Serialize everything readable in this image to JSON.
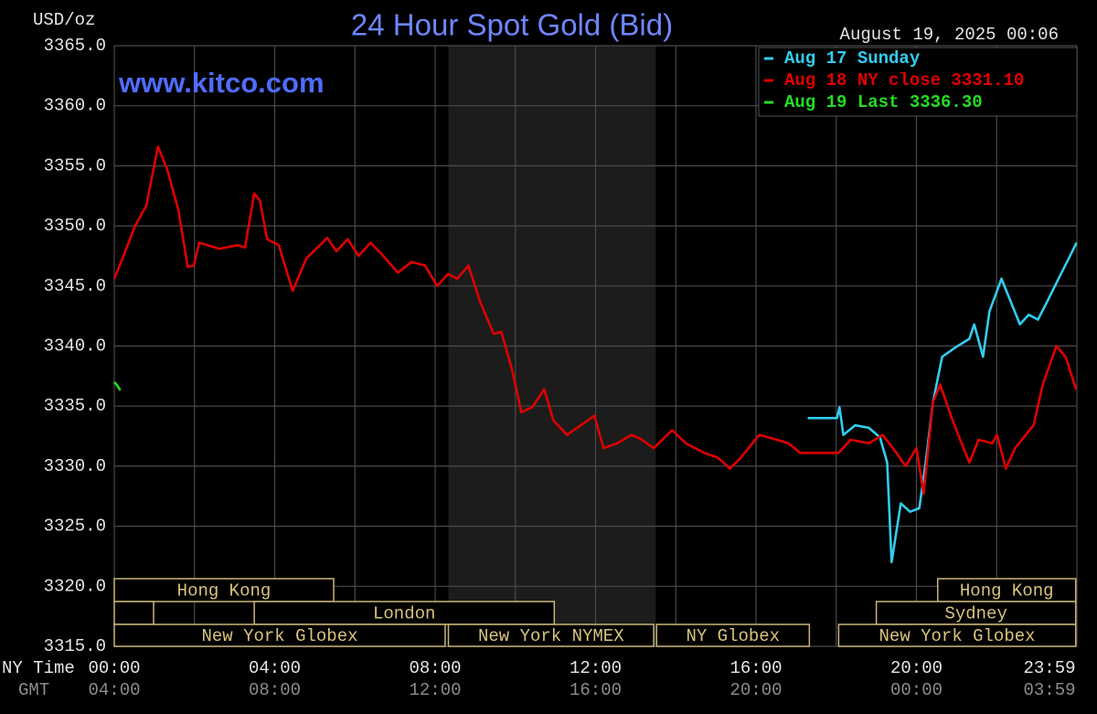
{
  "chart_data": {
    "type": "line",
    "title": "24 Hour Spot Gold (Bid)",
    "watermark": "www.kitco.com",
    "timestamp": "August 19, 2025 00:06",
    "y_label": "USD/oz",
    "x_label": "NY Time",
    "x2_label": "GMT",
    "xlim": [
      0,
      24
    ],
    "ylim": [
      3315,
      3365
    ],
    "xticks": [
      {
        "value": 0,
        "label": "00:00"
      },
      {
        "value": 4,
        "label": "04:00"
      },
      {
        "value": 8,
        "label": "08:00"
      },
      {
        "value": 12,
        "label": "12:00"
      },
      {
        "value": 16,
        "label": "16:00"
      },
      {
        "value": 20,
        "label": "20:00"
      },
      {
        "value": 23.983,
        "label": "23:59"
      }
    ],
    "gmt_labels": [
      "04:00",
      "08:00",
      "12:00",
      "16:00",
      "20:00",
      "00:00",
      "03:59"
    ],
    "xgrid": [
      0,
      2,
      4,
      6,
      8,
      10,
      12,
      14,
      16,
      18,
      20,
      22,
      24
    ],
    "yticks": [
      {
        "value": 3365,
        "label": "3365.0"
      },
      {
        "value": 3360,
        "label": "3360.0"
      },
      {
        "value": 3355,
        "label": "3355.0"
      },
      {
        "value": 3350,
        "label": "3350.0"
      },
      {
        "value": 3345,
        "label": "3345.0"
      },
      {
        "value": 3340,
        "label": "3340.0"
      },
      {
        "value": 3335,
        "label": "3335.0"
      },
      {
        "value": 3330,
        "label": "3330.0"
      },
      {
        "value": 3325,
        "label": "3325.0"
      },
      {
        "value": 3320,
        "label": "3320.0"
      },
      {
        "value": 3315,
        "label": "3315.0"
      }
    ],
    "grid": true,
    "legend": "top-right",
    "shaded_range": [
      8.33,
      13.5
    ],
    "sessions": [
      {
        "name": "Hong Kong",
        "row": 0,
        "start": 0,
        "end": 5.47
      },
      {
        "name": null,
        "row": 1,
        "start": 0,
        "end": 0.98
      },
      {
        "name": "London",
        "row": 1,
        "start": 3.49,
        "end": 10.97
      },
      {
        "name": "New York Globex",
        "row": 2,
        "start": 0,
        "end": 8.25
      },
      {
        "name": "New York NYMEX",
        "row": 2,
        "start": 8.33,
        "end": 13.45
      },
      {
        "name": "NY Globex",
        "row": 2,
        "start": 13.52,
        "end": 17.33
      },
      {
        "name": "Hong Kong",
        "row": 0,
        "start": 20.53,
        "end": 23.97
      },
      {
        "name": "Sydney",
        "row": 1,
        "start": 19.0,
        "end": 23.97
      },
      {
        "name": "New York Globex",
        "row": 2,
        "start": 18.06,
        "end": 23.97
      }
    ],
    "series": [
      {
        "name": "Aug 17 Sunday",
        "color": "#33ccee",
        "x": [
          17.29,
          18.02,
          18.08,
          18.18,
          18.47,
          18.81,
          19.09,
          19.27,
          19.38,
          19.61,
          19.84,
          20.07,
          20.23,
          20.41,
          20.64,
          20.98,
          21.32,
          21.44,
          21.66,
          21.82,
          22.12,
          22.35,
          22.58,
          22.8,
          23.03,
          23.26,
          23.6,
          23.83,
          23.99
        ],
        "values": [
          3334.0,
          3334.0,
          3334.9,
          3332.6,
          3333.4,
          3333.2,
          3332.4,
          3330.3,
          3322.0,
          3326.9,
          3326.2,
          3326.5,
          3330.3,
          3335.3,
          3339.1,
          3339.9,
          3340.6,
          3341.8,
          3339.1,
          3342.9,
          3345.6,
          3343.7,
          3341.8,
          3342.6,
          3342.2,
          3343.7,
          3346.0,
          3347.5,
          3348.6
        ]
      },
      {
        "name": "Aug 18 NY close 3331.10",
        "color": "#e00000",
        "x": [
          0,
          0.23,
          0.52,
          0.8,
          1.09,
          1.32,
          1.6,
          1.83,
          1.98,
          2.12,
          2.62,
          3.08,
          3.26,
          3.49,
          3.63,
          3.81,
          4.1,
          4.45,
          4.79,
          5.31,
          5.54,
          5.82,
          6.09,
          6.39,
          6.68,
          7.07,
          7.41,
          7.75,
          8.05,
          8.32,
          8.55,
          8.83,
          9.12,
          9.46,
          9.65,
          9.92,
          10.15,
          10.42,
          10.72,
          10.95,
          11.29,
          11.63,
          11.97,
          12.2,
          12.54,
          12.89,
          13.11,
          13.45,
          13.91,
          14.25,
          14.71,
          15.05,
          15.35,
          15.62,
          16.08,
          16.42,
          16.81,
          17.1,
          18.06,
          18.36,
          18.81,
          19.16,
          19.5,
          19.73,
          20.0,
          20.18,
          20.41,
          20.59,
          20.87,
          21.09,
          21.32,
          21.55,
          21.89,
          22.01,
          22.23,
          22.46,
          22.92,
          23.15,
          23.49,
          23.72,
          23.98
        ],
        "values": [
          3345.6,
          3347.5,
          3350.0,
          3351.7,
          3356.6,
          3354.7,
          3351.3,
          3346.6,
          3346.7,
          3348.6,
          3348.1,
          3348.4,
          3348.2,
          3352.7,
          3352.1,
          3348.9,
          3348.4,
          3344.6,
          3347.3,
          3349.0,
          3347.9,
          3348.9,
          3347.5,
          3348.6,
          3347.6,
          3346.1,
          3347.0,
          3346.7,
          3345.0,
          3346.0,
          3345.6,
          3346.7,
          3343.7,
          3341.0,
          3341.2,
          3338.0,
          3334.5,
          3334.9,
          3336.4,
          3333.8,
          3332.6,
          3333.4,
          3334.2,
          3331.5,
          3331.9,
          3332.6,
          3332.3,
          3331.5,
          3333.0,
          3331.9,
          3331.1,
          3330.7,
          3329.8,
          3330.7,
          3332.6,
          3332.3,
          3331.9,
          3331.1,
          3331.1,
          3332.2,
          3331.9,
          3332.6,
          3331.1,
          3330.0,
          3331.5,
          3327.7,
          3335.3,
          3336.8,
          3334.1,
          3332.2,
          3330.3,
          3332.2,
          3331.9,
          3332.6,
          3329.8,
          3331.5,
          3333.4,
          3336.8,
          3340.0,
          3339.1,
          3336.4
        ]
      },
      {
        "name": "Aug 19 Last 3336.30",
        "color": "#22dd22",
        "x": [
          0,
          0.08,
          0.15
        ],
        "values": [
          3337.0,
          3336.7,
          3336.3
        ]
      }
    ]
  }
}
